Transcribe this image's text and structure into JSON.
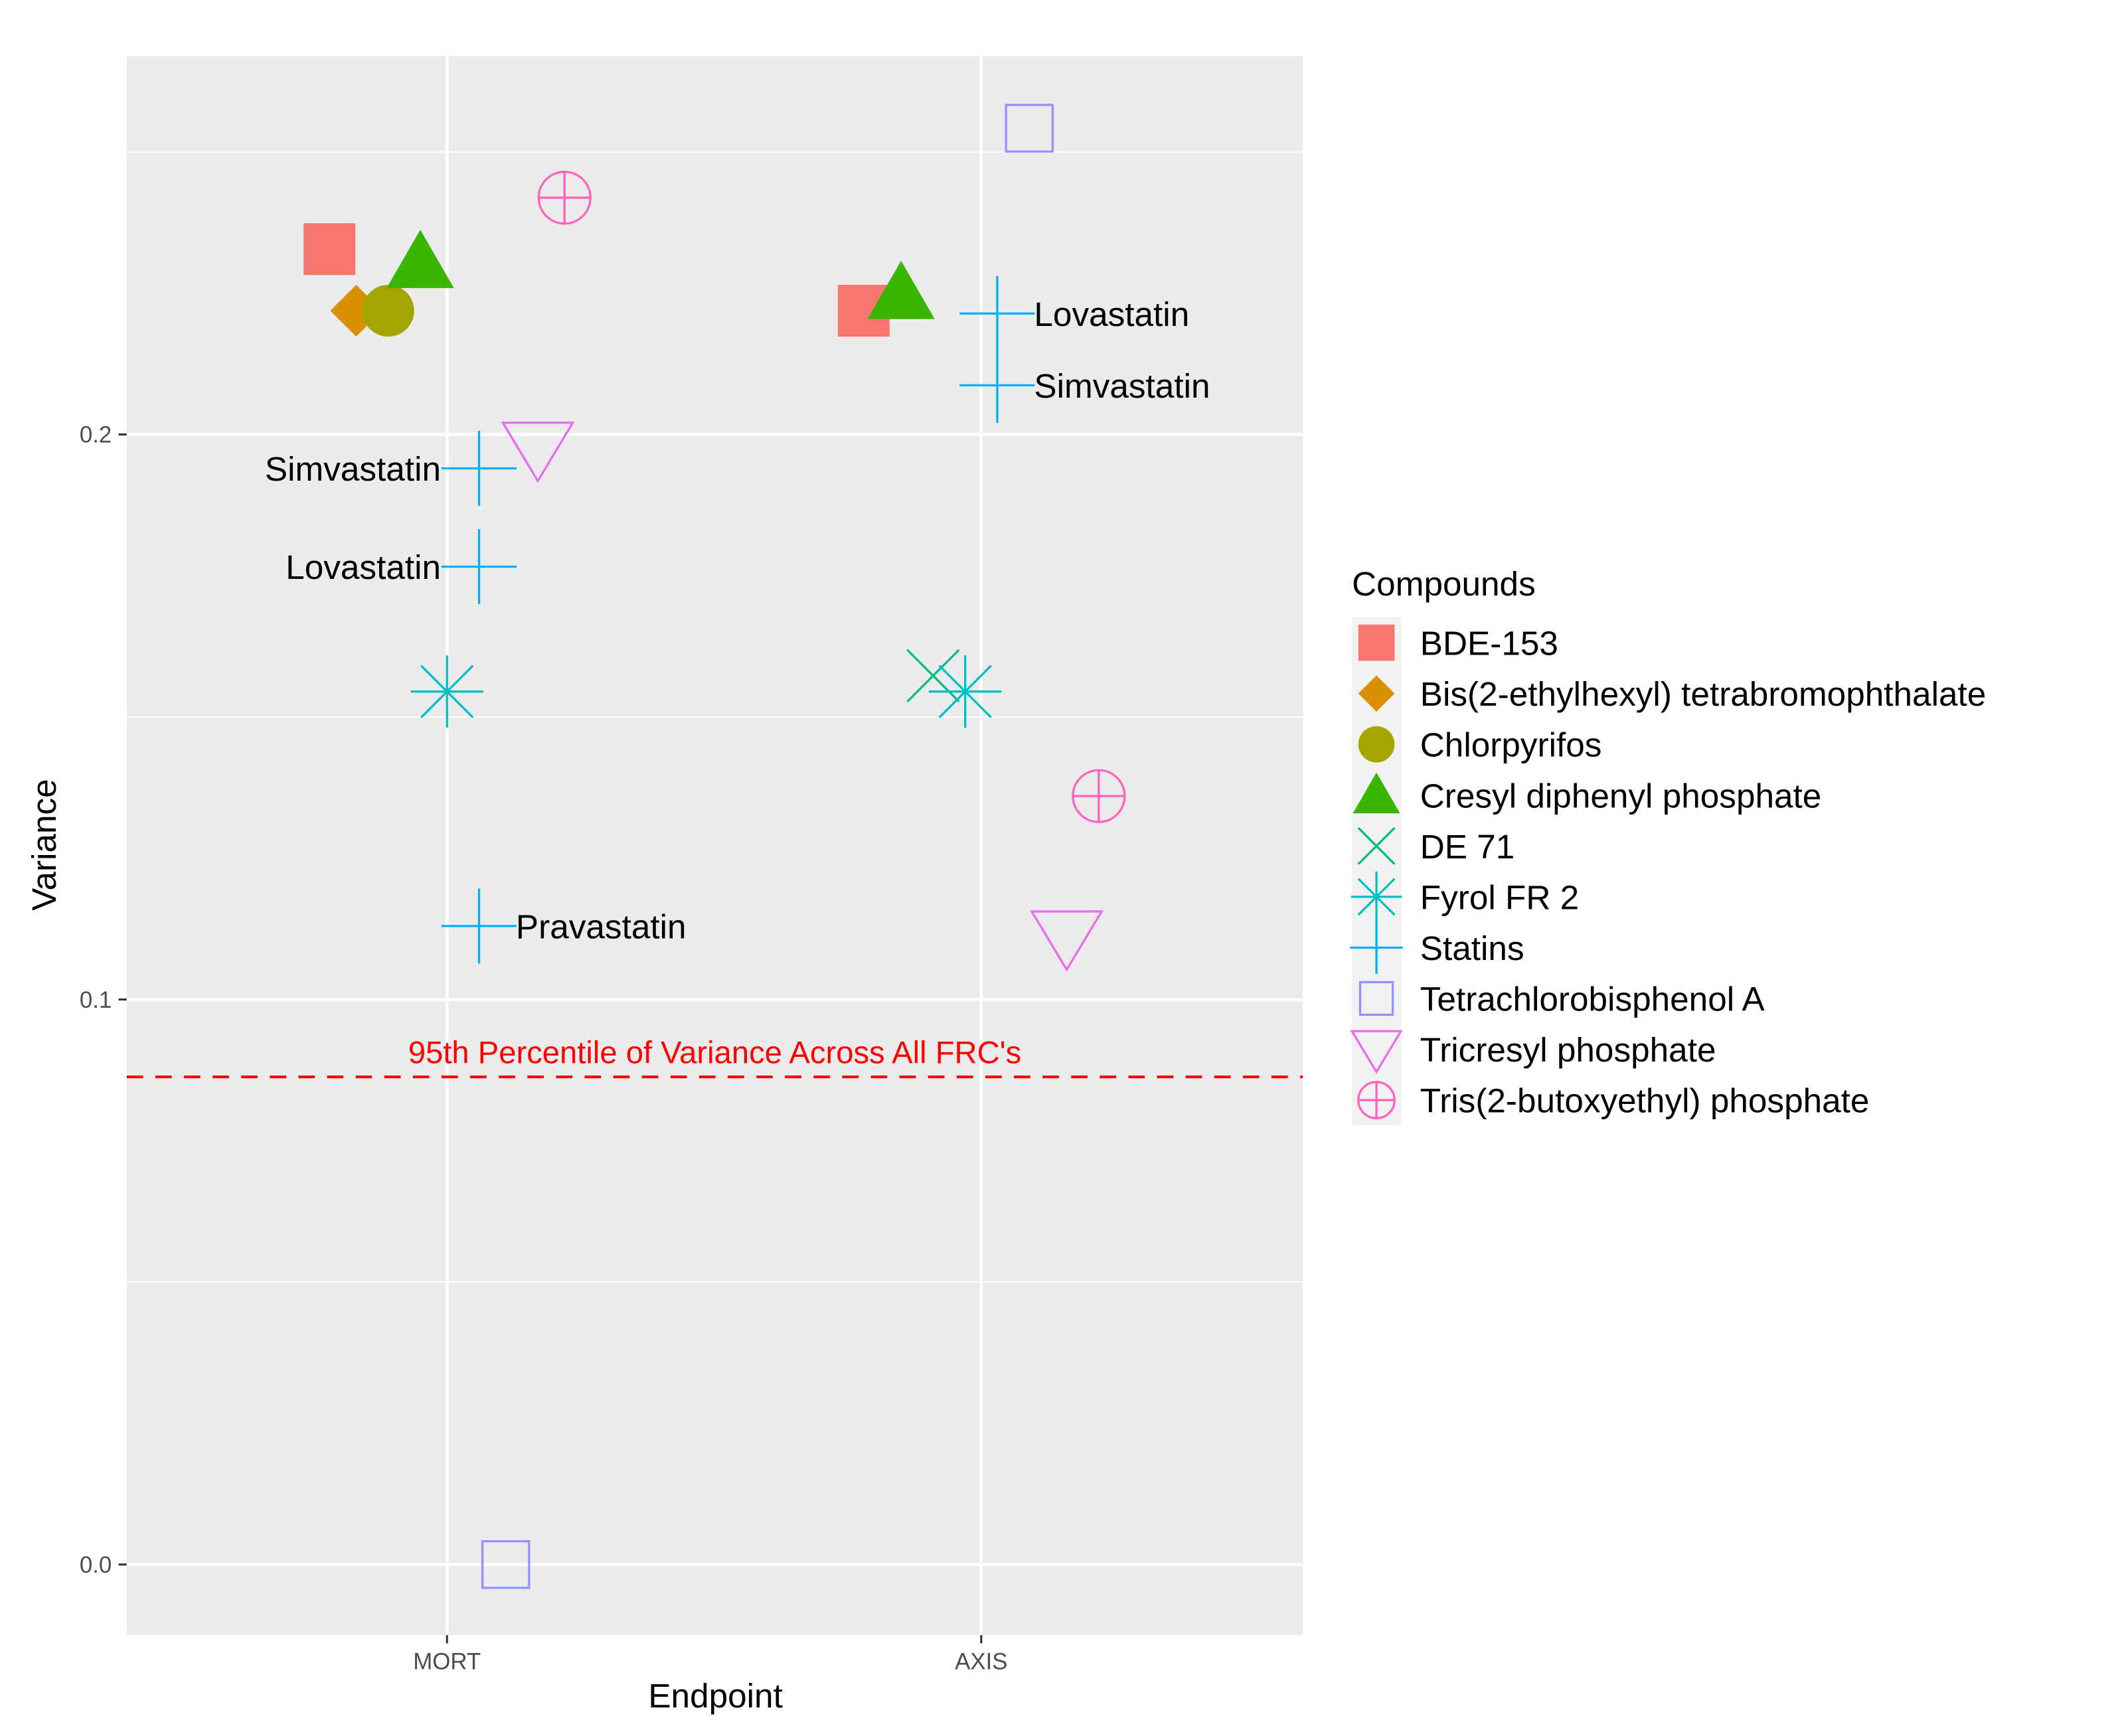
{
  "chart_data": {
    "type": "scatter",
    "title": "",
    "xlabel": "Endpoint",
    "ylabel": "Variance",
    "categories": [
      "MORT",
      "AXIS"
    ],
    "ylim": [
      -0.0125,
      0.267
    ],
    "yticks": [
      0.0,
      0.1,
      0.2
    ],
    "ytick_labels": [
      "0.0",
      "0.1",
      "0.2"
    ],
    "grid": true,
    "reference_line": {
      "y": 0.0863,
      "label": "95th Percentile of Variance Across All FRC's",
      "color": "#FF0000",
      "style": "dashed"
    },
    "legend": {
      "title": "Compounds",
      "placement": "right",
      "entries": [
        {
          "name": "BDE-153",
          "color": "#F8766D",
          "shape": "filled-square"
        },
        {
          "name": "Bis(2-ethylhexyl) tetrabromophthalate",
          "color": "#D89000",
          "shape": "filled-diamond"
        },
        {
          "name": "Chlorpyrifos",
          "color": "#A3A500",
          "shape": "filled-circle"
        },
        {
          "name": "Cresyl diphenyl phosphate",
          "color": "#39B600",
          "shape": "filled-triangle"
        },
        {
          "name": "DE 71",
          "color": "#00BF7D",
          "shape": "x"
        },
        {
          "name": "Fyrol FR 2",
          "color": "#00BFC4",
          "shape": "asterisk"
        },
        {
          "name": "Statins",
          "color": "#00B0F6",
          "shape": "plus"
        },
        {
          "name": "Tetrachlorobisphenol A",
          "color": "#9590FF",
          "shape": "open-square"
        },
        {
          "name": "Tricresyl phosphate",
          "color": "#E76BF3",
          "shape": "open-down-triangle"
        },
        {
          "name": "Tris(2-butoxyethyl) phosphate",
          "color": "#FF62BC",
          "shape": "circle-plus"
        }
      ]
    },
    "points": [
      {
        "compound": 0,
        "endpoint": "MORT",
        "jitter": -0.22,
        "y": 0.2328
      },
      {
        "compound": 1,
        "endpoint": "MORT",
        "jitter": -0.17,
        "y": 0.2219
      },
      {
        "compound": 2,
        "endpoint": "MORT",
        "jitter": -0.11,
        "y": 0.2219
      },
      {
        "compound": 3,
        "endpoint": "MORT",
        "jitter": -0.05,
        "y": 0.2305
      },
      {
        "compound": 9,
        "endpoint": "MORT",
        "jitter": 0.22,
        "y": 0.2419
      },
      {
        "compound": 8,
        "endpoint": "MORT",
        "jitter": 0.17,
        "y": 0.1975
      },
      {
        "compound": 6,
        "endpoint": "MORT",
        "jitter": 0.06,
        "y": 0.194,
        "label": "Simvastatin",
        "label_side": "left"
      },
      {
        "compound": 6,
        "endpoint": "MORT",
        "jitter": 0.06,
        "y": 0.1766,
        "label": "Lovastatin",
        "label_side": "left"
      },
      {
        "compound": 5,
        "endpoint": "MORT",
        "jitter": 0.0,
        "y": 0.1545
      },
      {
        "compound": 6,
        "endpoint": "MORT",
        "jitter": 0.06,
        "y": 0.113,
        "label": "Pravastatin",
        "label_side": "right"
      },
      {
        "compound": 7,
        "endpoint": "MORT",
        "jitter": 0.11,
        "y": 0.0
      },
      {
        "compound": 7,
        "endpoint": "AXIS",
        "jitter": 0.09,
        "y": 0.2542
      },
      {
        "compound": 0,
        "endpoint": "AXIS",
        "jitter": -0.22,
        "y": 0.2219
      },
      {
        "compound": 3,
        "endpoint": "AXIS",
        "jitter": -0.15,
        "y": 0.225
      },
      {
        "compound": 6,
        "endpoint": "AXIS",
        "jitter": 0.03,
        "y": 0.2214,
        "label": "Lovastatin",
        "label_side": "right"
      },
      {
        "compound": 6,
        "endpoint": "AXIS",
        "jitter": 0.03,
        "y": 0.2087,
        "label": "Simvastatin",
        "label_side": "right"
      },
      {
        "compound": 4,
        "endpoint": "AXIS",
        "jitter": -0.09,
        "y": 0.1573
      },
      {
        "compound": 5,
        "endpoint": "AXIS",
        "jitter": -0.03,
        "y": 0.1545
      },
      {
        "compound": 9,
        "endpoint": "AXIS",
        "jitter": 0.22,
        "y": 0.136
      },
      {
        "compound": 8,
        "endpoint": "AXIS",
        "jitter": 0.16,
        "y": 0.111
      }
    ]
  }
}
